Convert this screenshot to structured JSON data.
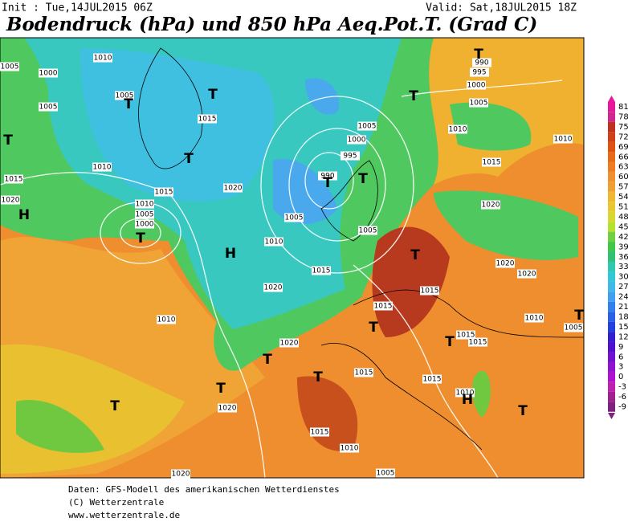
{
  "header": {
    "init": "Init : Tue,14JUL2015 06Z",
    "valid": "Valid: Sat,18JUL2015 18Z",
    "title": "Bodendruck (hPa) und 850 hPa Aeq.Pot.T. (Grad C)"
  },
  "legend": {
    "ticks": [
      81,
      78,
      75,
      72,
      69,
      66,
      63,
      60,
      57,
      54,
      51,
      48,
      45,
      42,
      39,
      36,
      33,
      30,
      27,
      24,
      21,
      18,
      15,
      12,
      9,
      6,
      3,
      0,
      -3,
      -6,
      -9
    ],
    "colors": [
      "#e8189c",
      "#d02890",
      "#c03020",
      "#d04018",
      "#e05010",
      "#e86a18",
      "#f07c20",
      "#f09030",
      "#f0a030",
      "#f0b830",
      "#e8c830",
      "#d8d830",
      "#b8e030",
      "#70d040",
      "#40c848",
      "#30c078",
      "#30c8b0",
      "#30c8d8",
      "#40b8e8",
      "#40a0f0",
      "#3080f0",
      "#2860e8",
      "#2040e0",
      "#3020d0",
      "#5010d0",
      "#7010d0",
      "#9010d0",
      "#b010d0",
      "#c020b0",
      "#a02090",
      "#802080"
    ]
  },
  "map": {
    "labels": [
      "1005",
      "1000",
      "1005",
      "1015",
      "1020",
      "H",
      "T",
      "1010",
      "1010",
      "1005",
      "1000",
      "T",
      "1015",
      "1005",
      "T",
      "T",
      "1015",
      "T",
      "1010",
      "1020",
      "H",
      "1010",
      "1020",
      "1015",
      "1005",
      "990",
      "995",
      "1000",
      "1005",
      "T",
      "T",
      "1005",
      "T",
      "1005",
      "1010",
      "1015",
      "1000",
      "995",
      "990",
      "T",
      "1010",
      "1020",
      "1020",
      "1020",
      "T",
      "T",
      "1015",
      "1015",
      "1015",
      "1015",
      "1010",
      "1005",
      "T",
      "1015",
      "1015",
      "T",
      "T",
      "1020",
      "1010",
      "T",
      "1020",
      "T",
      "1015",
      "1010",
      "1005",
      "1010",
      "H",
      "T",
      "1020",
      "T"
    ]
  },
  "footer": {
    "lines": [
      "Daten: GFS-Modell des amerikanischen Wetterdienstes",
      "(C) Wetterzentrale",
      "www.wetterzentrale.de"
    ]
  }
}
